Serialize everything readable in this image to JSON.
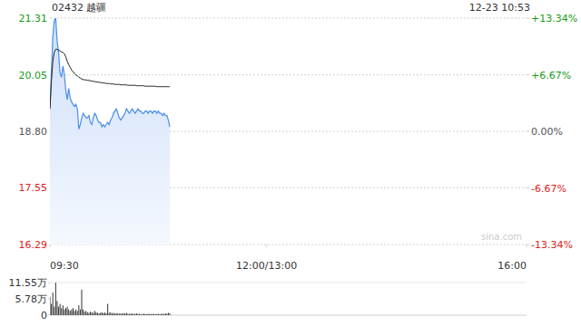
{
  "chart_data": [
    {
      "type": "line",
      "title": "02432 越疆",
      "subtitle": "12-23 10:53",
      "annotations": [
        "sina.com"
      ],
      "x": [
        0,
        1,
        2,
        3,
        4,
        5,
        6,
        7,
        8,
        9,
        10,
        11,
        12,
        13,
        14,
        15,
        16,
        17,
        18,
        19,
        20,
        21,
        22,
        23,
        24,
        25,
        26,
        27,
        28,
        29,
        30,
        31,
        32,
        33,
        34,
        35,
        36,
        37,
        38,
        39,
        40,
        41,
        42,
        43,
        44,
        45,
        46,
        47,
        48,
        49,
        50,
        51,
        52,
        53,
        54,
        55,
        56,
        57,
        58,
        59,
        60,
        61,
        62,
        63,
        64,
        65,
        66,
        67,
        68,
        69,
        70,
        71,
        72,
        73,
        74,
        75,
        76,
        77,
        78,
        79,
        80,
        81,
        82,
        83
      ],
      "xlim": [
        0,
        330
      ],
      "xticks": [
        {
          "value": 0,
          "label": "09:30"
        },
        {
          "value": 150,
          "label": "12:00/13:00"
        },
        {
          "value": 330,
          "label": "16:00"
        }
      ],
      "ylim": [
        16.29,
        21.31
      ],
      "yticks": [
        16.29,
        17.55,
        {
          "value": 18.8,
          "label": "18.80"
        },
        20.05,
        21.31
      ],
      "y2lim": [
        -13.34,
        13.34
      ],
      "y2ticks": [
        {
          "value": -13.34,
          "label": "-13.34%"
        },
        {
          "value": -6.67,
          "label": "-6.67%"
        },
        {
          "value": 0,
          "label": "0.00%"
        },
        {
          "value": 6.67,
          "label": "+6.67%"
        },
        {
          "value": 13.34,
          "label": "+13.34%"
        }
      ],
      "grid": true,
      "series": [
        {
          "type": "area",
          "color": "#4a8ee8",
          "values": [
            19.3,
            20.1,
            20.9,
            21.25,
            21.31,
            20.8,
            20.55,
            20.1,
            20.0,
            20.25,
            20.05,
            19.7,
            19.5,
            19.75,
            19.55,
            19.45,
            19.4,
            19.35,
            19.4,
            19.3,
            18.85,
            18.95,
            19.1,
            19.2,
            19.15,
            19.1,
            19.1,
            19.15,
            19.0,
            18.95,
            19.1,
            19.2,
            19.15,
            19.05,
            19.0,
            19.0,
            18.9,
            18.95,
            18.9,
            18.95,
            19.0,
            18.95,
            19.05,
            19.1,
            19.2,
            19.25,
            19.3,
            19.2,
            19.1,
            19.05,
            19.1,
            19.15,
            19.2,
            19.3,
            19.25,
            19.2,
            19.25,
            19.3,
            19.25,
            19.2,
            19.25,
            19.3,
            19.25,
            19.25,
            19.2,
            19.2,
            19.25,
            19.25,
            19.2,
            19.25,
            19.25,
            19.2,
            19.25,
            19.25,
            19.2,
            19.25,
            19.2,
            19.2,
            19.15,
            19.2,
            19.15,
            19.15,
            19.05,
            18.9
          ]
        },
        {
          "type": "line",
          "color": "#222222",
          "values": [
            19.3,
            19.9,
            20.35,
            20.55,
            20.62,
            20.62,
            20.6,
            20.58,
            20.56,
            20.55,
            20.52,
            20.45,
            20.35,
            20.28,
            20.22,
            20.16,
            20.12,
            20.08,
            20.05,
            20.03,
            20.0,
            19.98,
            19.96,
            19.95,
            19.94,
            19.94,
            19.93,
            19.93,
            19.92,
            19.91,
            19.91,
            19.9,
            19.9,
            19.89,
            19.89,
            19.88,
            19.88,
            19.87,
            19.87,
            19.86,
            19.86,
            19.86,
            19.85,
            19.85,
            19.85,
            19.84,
            19.84,
            19.84,
            19.84,
            19.83,
            19.83,
            19.83,
            19.83,
            19.83,
            19.82,
            19.82,
            19.82,
            19.82,
            19.82,
            19.82,
            19.81,
            19.81,
            19.81,
            19.81,
            19.81,
            19.81,
            19.8,
            19.8,
            19.8,
            19.8,
            19.8,
            19.8,
            19.8,
            19.8,
            19.79,
            19.79,
            19.79,
            19.79,
            19.79,
            19.79,
            19.79,
            19.79,
            19.79,
            19.79
          ]
        }
      ]
    },
    {
      "type": "bar",
      "x": [
        0,
        1,
        2,
        3,
        4,
        5,
        6,
        7,
        8,
        9,
        10,
        11,
        12,
        13,
        14,
        15,
        16,
        17,
        18,
        19,
        20,
        21,
        22,
        23,
        24,
        25,
        26,
        27,
        28,
        29,
        30,
        31,
        32,
        33,
        34,
        35,
        36,
        37,
        38,
        39,
        40,
        41,
        42,
        43,
        44,
        45,
        46,
        47,
        48,
        49,
        50,
        51,
        52,
        53,
        54,
        55,
        56,
        57,
        58,
        59,
        60,
        61,
        62,
        63,
        64,
        65,
        66,
        67,
        68,
        69,
        70,
        71,
        72,
        73,
        74,
        75,
        76,
        77,
        78,
        79,
        80,
        81,
        82,
        83
      ],
      "xlim": [
        0,
        330
      ],
      "tick_labels": "y",
      "ylim": [
        0,
        11.55
      ],
      "yticks": [
        0,
        {
          "value": 5.78,
          "label": "5.78万"
        },
        {
          "value": 11.55,
          "label": "11.55万"
        }
      ],
      "color": "#333333",
      "values": [
        6.5,
        4,
        8,
        3,
        11.5,
        5,
        3,
        4,
        2.5,
        3.5,
        2,
        2.5,
        3,
        2,
        1.5,
        2,
        2.5,
        1.5,
        2,
        1.5,
        3.5,
        2,
        9,
        2,
        1.2,
        1.5,
        1,
        0.8,
        1.2,
        1,
        0.8,
        1.5,
        1,
        0.8,
        0.6,
        0.8,
        1,
        0.7,
        0.9,
        0.6,
        4,
        0.8,
        1,
        0.6,
        0.8,
        0.5,
        0.7,
        0.6,
        0.5,
        0.6,
        0.5,
        0.7,
        0.6,
        0.8,
        0.5,
        0.4,
        0.6,
        0.5,
        0.4,
        0.5,
        0.6,
        0.4,
        0.5,
        0.3,
        0.4,
        0.5,
        0.4,
        0.3,
        0.5,
        0.4,
        0.3,
        0.5,
        0.4,
        0.3,
        0.4,
        0.5,
        0.3,
        0.4,
        0.5,
        0.4,
        0.6,
        0.5,
        0.8,
        0.6
      ]
    }
  ]
}
